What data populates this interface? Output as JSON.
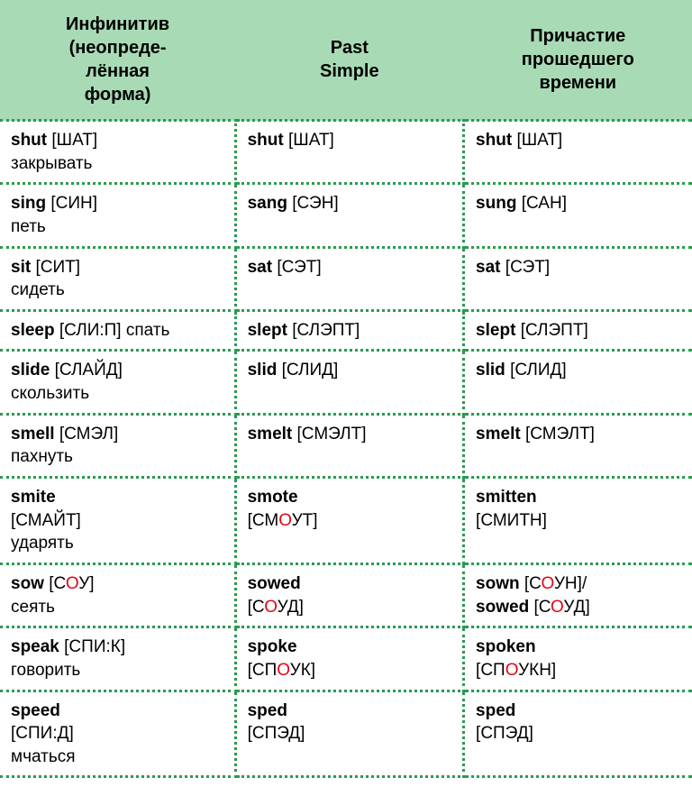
{
  "type": "table",
  "background_color": "#ffffff",
  "header_bg": "#a8dbb5",
  "border_color": "#2a9b4f",
  "stress_color": "#e30613",
  "text_color": "#000000",
  "font_family": "Arial",
  "header_fontsize": 20,
  "body_fontsize": 19,
  "columns": [
    {
      "label": "Инфинитив (неопреде­лённая форма)",
      "width_pct": 34
    },
    {
      "label": "Past Simple",
      "width_pct": 33
    },
    {
      "label": "Причастие прошедшего времени",
      "width_pct": 33
    }
  ],
  "col_headers": {
    "c1_l1": "Инфинитив",
    "c1_l2": "(неопреде-",
    "c1_l3": "лённая",
    "c1_l4": "форма)",
    "c2_l1": "Past",
    "c2_l2": "Simple",
    "c3_l1": "Причастие",
    "c3_l2": "прошедшего",
    "c3_l3": "времени"
  },
  "rows": [
    {
      "inf": {
        "word": "shut",
        "pron": "[ШАТ]",
        "trans": "закрывать"
      },
      "past": {
        "word": "shut",
        "pron": "[ШАТ]"
      },
      "pp": {
        "word": "shut",
        "pron": "[ШАТ]"
      }
    },
    {
      "inf": {
        "word": "sing",
        "pron": "[СИН]",
        "trans": "петь"
      },
      "past": {
        "word": "sang",
        "pron": "[СЭН]"
      },
      "pp": {
        "word": "sung",
        "pron": "[САН]"
      }
    },
    {
      "inf": {
        "word": "sit",
        "pron": "[СИТ]",
        "trans": "сидеть"
      },
      "past": {
        "word": "sat",
        "pron": "[СЭТ]"
      },
      "pp": {
        "word": "sat",
        "pron": "[СЭТ]"
      }
    },
    {
      "inf": {
        "word": "sleep",
        "pron": "[СЛИ:П]",
        "trans": "спать",
        "inline_trans": true
      },
      "past": {
        "word": "slept",
        "pron": "[СЛЭПТ]"
      },
      "pp": {
        "word": "slept",
        "pron": "[СЛЭПТ]"
      }
    },
    {
      "inf": {
        "word": "slide",
        "pron": "[СЛАЙД]",
        "trans": "скользить"
      },
      "past": {
        "word": "slid",
        "pron": "[СЛИД]"
      },
      "pp": {
        "word": "slid",
        "pron": "[СЛИД]"
      }
    },
    {
      "inf": {
        "word": "smell",
        "pron": "[СМЭЛ]",
        "trans": "пахнуть"
      },
      "past": {
        "word": "smelt",
        "pron": "[СМЭЛТ]"
      },
      "pp": {
        "word": "smelt",
        "pron": "[СМЭЛТ]"
      }
    },
    {
      "inf": {
        "word": "smite",
        "pron_parts": [
          "[СМАЙТ]"
        ],
        "trans": "ударять",
        "pron_below": true
      },
      "past": {
        "word": "smote",
        "pron_parts": [
          "[СМ",
          {
            "stress": "О"
          },
          "УТ]"
        ],
        "pron_below": true
      },
      "pp": {
        "word": "smitten",
        "pron_parts": [
          "[СМИТН]"
        ],
        "pron_below": true
      }
    },
    {
      "inf": {
        "word": "sow",
        "pron_parts": [
          "[С",
          {
            "stress": "О"
          },
          "У]"
        ],
        "trans": "сеять"
      },
      "past": {
        "word": "sowed",
        "pron_parts": [
          "[С",
          {
            "stress": "О"
          },
          "УД]"
        ],
        "pron_below": true
      },
      "pp": {
        "dual": [
          {
            "word": "sown",
            "pron_parts": [
              "[С",
              {
                "stress": "О"
              },
              "УН]"
            ],
            "suffix": "/"
          },
          {
            "word": "sowed",
            "pron_parts": [
              "[С",
              {
                "stress": "О"
              },
              "УД]"
            ]
          }
        ]
      }
    },
    {
      "inf": {
        "word": "speak",
        "pron": "[СПИ:К]",
        "trans": "говорить"
      },
      "past": {
        "word": "spoke",
        "pron_parts": [
          "[СП",
          {
            "stress": "О"
          },
          "УК]"
        ],
        "pron_below": true
      },
      "pp": {
        "word": "spoken",
        "pron_parts": [
          "[СП",
          {
            "stress": "О"
          },
          "УКН]"
        ],
        "pron_below": true
      }
    },
    {
      "inf": {
        "word": "speed",
        "pron": "[СПИ:Д]",
        "trans": "мчаться",
        "pron_below": true
      },
      "past": {
        "word": "sped",
        "pron": "[СПЭД]",
        "pron_below": true
      },
      "pp": {
        "word": "sped",
        "pron": "[СПЭД]",
        "pron_below": true
      }
    }
  ]
}
